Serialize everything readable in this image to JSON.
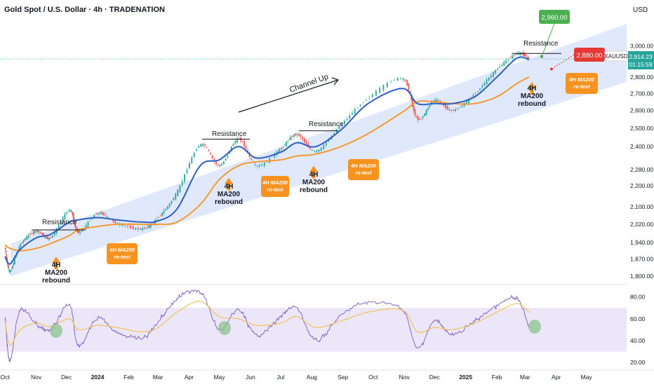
{
  "header": {
    "title": "Gold Spot / U.S. Dollar · 4h · TRADENATION",
    "currency": "USD"
  },
  "price_axis": {
    "ticks": [
      "3,000.00",
      "2,900.00",
      "2,800.00",
      "2,700.00",
      "2,600.00",
      "2,500.00",
      "2,400.00",
      "2,280.00",
      "2,200.00",
      "2,100.00",
      "2,020.00",
      "1,940.00",
      "1,870.00",
      "1,800.00"
    ],
    "symbol_badge": "XAUUSD",
    "last_price": "2,914.23",
    "countdown": "01:15:59"
  },
  "rsi_axis": {
    "ticks": [
      "80.00",
      "60.00",
      "40.00",
      "20.00"
    ]
  },
  "time_axis": {
    "ticks": [
      "Oct",
      "Nov",
      "Dec",
      "2024",
      "Feb",
      "Mar",
      "Apr",
      "May",
      "Jun",
      "Jul",
      "Aug",
      "Sep",
      "Oct",
      "Nov",
      "Dec",
      "2025",
      "Feb",
      "Mar",
      "Apr",
      "May"
    ]
  },
  "annotations": {
    "resistance": "Resistance",
    "channel": "Channel Up",
    "rebound_line1": "4H",
    "rebound_line2": "MA200",
    "rebound_line3": "rebound",
    "retest_line1": "4H MA200",
    "retest_line2": "re-test",
    "target_price": "2,960.00",
    "stop_price": "2,880.00"
  },
  "colors": {
    "channel_fill": "#dbe4fb",
    "rsi_band": "#ebe6f8",
    "ma_fast": "#2f5fc4",
    "ma_slow": "#f7931e",
    "rsi_line": "#7e57c2",
    "rsi_ma": "#f3c04d",
    "candle_up": "#26a69a",
    "candle_down": "#ef5350",
    "label_orange": "#f7931e",
    "target_green": "#4caf50",
    "stop_red": "#e53935",
    "price_badge": "#26a69a"
  },
  "chart_data": {
    "type": "line",
    "title": "Gold Spot / U.S. Dollar · 4h · TRADENATION",
    "ylabel": "USD",
    "y_scale": "log",
    "ylim": [
      1770,
      3180
    ],
    "x": [
      "2023-10-01",
      "2023-10-06",
      "2023-10-16",
      "2023-11-01",
      "2023-11-15",
      "2023-12-04",
      "2023-12-13",
      "2024-01-01",
      "2024-01-20",
      "2024-02-14",
      "2024-03-01",
      "2024-03-20",
      "2024-04-12",
      "2024-05-01",
      "2024-05-20",
      "2024-06-07",
      "2024-07-01",
      "2024-07-17",
      "2024-08-05",
      "2024-08-30",
      "2024-09-26",
      "2024-10-30",
      "2024-11-14",
      "2024-12-01",
      "2024-12-19",
      "2025-01-10",
      "2025-02-01",
      "2025-02-21",
      "2025-03-05"
    ],
    "series": [
      {
        "values": [
          1920,
          1820,
          1930,
          1990,
          1960,
          2085,
          1985,
          2070,
          2025,
          2000,
          2050,
          2170,
          2410,
          2300,
          2440,
          2300,
          2390,
          2465,
          2375,
          2520,
          2675,
          2790,
          2550,
          2660,
          2600,
          2700,
          2850,
          2950,
          2914
        ]
      },
      {
        "values": [
          1880,
          1850,
          1910,
          1960,
          1975,
          2030,
          2040,
          2050,
          2040,
          2030,
          2035,
          2090,
          2300,
          2330,
          2400,
          2340,
          2370,
          2420,
          2400,
          2490,
          2640,
          2730,
          2640,
          2640,
          2640,
          2680,
          2800,
          2920,
          2910
        ]
      },
      {
        "values": [
          1930,
          1915,
          1905,
          1915,
          1935,
          1970,
          1995,
          2010,
          2020,
          2020,
          2020,
          2030,
          2110,
          2230,
          2300,
          2320,
          2330,
          2350,
          2360,
          2400,
          2470,
          2590,
          2650,
          2650,
          2640,
          2640,
          2680,
          2760,
          2800
        ]
      }
    ],
    "target": 2960,
    "stop": 2880,
    "last_price": 2914.23,
    "rsi": {
      "ylim": [
        15,
        90
      ],
      "band": [
        30,
        70
      ],
      "x": [
        "2023-10-01",
        "2023-10-06",
        "2023-10-16",
        "2023-11-01",
        "2023-11-15",
        "2023-12-04",
        "2023-12-13",
        "2024-01-01",
        "2024-01-20",
        "2024-02-14",
        "2024-03-01",
        "2024-03-20",
        "2024-04-12",
        "2024-05-01",
        "2024-05-20",
        "2024-06-07",
        "2024-07-01",
        "2024-07-17",
        "2024-08-05",
        "2024-08-30",
        "2024-09-26",
        "2024-10-30",
        "2024-11-14",
        "2024-12-01",
        "2024-12-19",
        "2025-01-10",
        "2025-02-01",
        "2025-02-21",
        "2025-03-05"
      ],
      "values": [
        62,
        22,
        68,
        55,
        50,
        73,
        35,
        60,
        48,
        42,
        57,
        78,
        85,
        50,
        68,
        45,
        62,
        70,
        40,
        63,
        75,
        68,
        33,
        58,
        45,
        58,
        72,
        78,
        52
      ],
      "ma_values": [
        58,
        36,
        50,
        56,
        53,
        60,
        50,
        54,
        52,
        48,
        52,
        66,
        76,
        62,
        60,
        54,
        56,
        62,
        52,
        58,
        66,
        68,
        48,
        52,
        50,
        56,
        66,
        74,
        66
      ]
    }
  }
}
